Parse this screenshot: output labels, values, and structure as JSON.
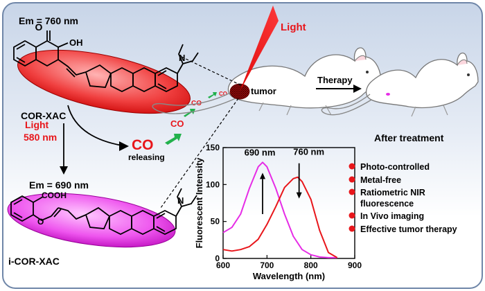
{
  "top_compound": {
    "em_label": "Em = 760 nm",
    "name": "COR-XAC",
    "oh_label": "OH",
    "n_label": "N",
    "o_label": "O"
  },
  "bottom_compound": {
    "em_label": "Em = 690 nm",
    "name": "i-COR-XAC",
    "acid_label": "COOH",
    "n_label": "N",
    "o_label": "O"
  },
  "process": {
    "light_label": "Light",
    "wavelength_label": "580 nm",
    "co_label": "CO",
    "releasing_label": "releasing",
    "co_small": "CO"
  },
  "mouse": {
    "light_label": "Light",
    "tumor_label": "tumor",
    "therapy_label": "Therapy",
    "after_label": "After treatment"
  },
  "features": [
    "Photo-controlled",
    "Metal-free",
    "Ratiometric NIR",
    "fluorescence",
    "In Vivo imaging",
    "Effective tumor therapy"
  ],
  "colors": {
    "red": "#e8161b",
    "magenta": "#e62ce6",
    "green": "#22b14c",
    "background_top": "#c9d6e8",
    "background_bottom": "#ffffff"
  },
  "chart_data": {
    "type": "line",
    "xlabel": "Wavelength (nm)",
    "ylabel": "Fluorescent Intensity",
    "xlim": [
      600,
      900
    ],
    "ylim": [
      0,
      150
    ],
    "xticks": [
      600,
      700,
      800,
      900
    ],
    "yticks": [
      0,
      50,
      100,
      150
    ],
    "annotations": [
      "690 nm",
      "760 nm"
    ],
    "series": [
      {
        "color": "#e62ce6",
        "x": [
          600,
          620,
          640,
          660,
          680,
          690,
          700,
          720,
          740,
          760,
          780,
          800,
          820,
          840,
          860
        ],
        "y": [
          35,
          42,
          60,
          95,
          124,
          130,
          124,
          95,
          60,
          30,
          12,
          5,
          2,
          1,
          1
        ]
      },
      {
        "color": "#e8161b",
        "x": [
          600,
          620,
          640,
          660,
          680,
          700,
          720,
          740,
          760,
          770,
          780,
          800,
          820,
          840,
          860
        ],
        "y": [
          12,
          10,
          12,
          16,
          26,
          46,
          70,
          96,
          108,
          110,
          104,
          80,
          38,
          8,
          1
        ]
      }
    ]
  }
}
